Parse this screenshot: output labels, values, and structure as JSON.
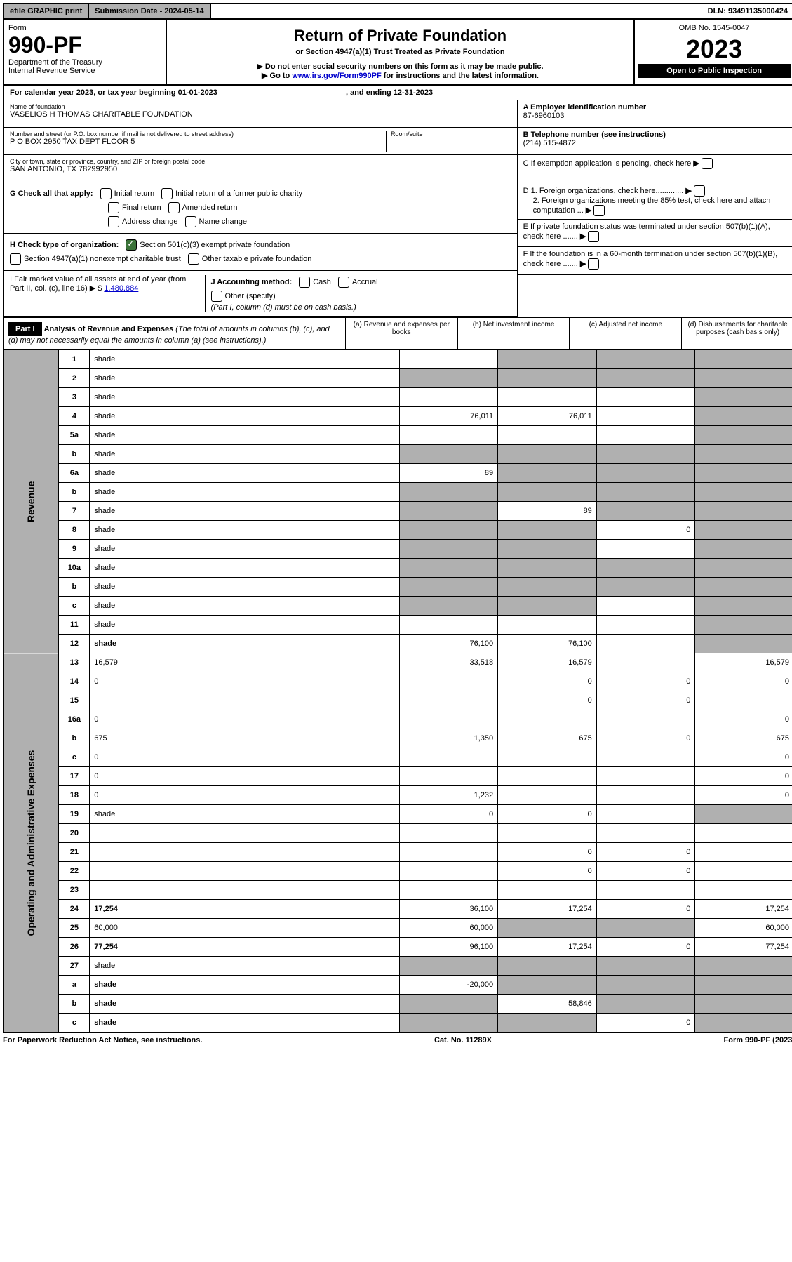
{
  "top": {
    "efile": "efile GRAPHIC print",
    "sub_date_label": "Submission Date - 2024-05-14",
    "dln": "DLN: 93491135000424"
  },
  "header": {
    "form_label": "Form",
    "form_num": "990-PF",
    "dept": "Department of the Treasury",
    "irs": "Internal Revenue Service",
    "title": "Return of Private Foundation",
    "subtitle": "or Section 4947(a)(1) Trust Treated as Private Foundation",
    "note1": "▶ Do not enter social security numbers on this form as it may be made public.",
    "note2_pre": "▶ Go to ",
    "note2_link": "www.irs.gov/Form990PF",
    "note2_post": " for instructions and the latest information.",
    "omb": "OMB No. 1545-0047",
    "year": "2023",
    "inspection": "Open to Public Inspection"
  },
  "cal": {
    "text_pre": "For calendar year 2023, or tax year beginning 01-01-2023",
    "text_mid": ", and ending 12-31-2023"
  },
  "info": {
    "name_label": "Name of foundation",
    "name": "VASELIOS H THOMAS CHARITABLE FOUNDATION",
    "addr_label": "Number and street (or P.O. box number if mail is not delivered to street address)",
    "addr": "P O BOX 2950 TAX DEPT FLOOR 5",
    "room_label": "Room/suite",
    "city_label": "City or town, state or province, country, and ZIP or foreign postal code",
    "city": "SAN ANTONIO, TX  782992950",
    "ein_label": "A Employer identification number",
    "ein": "87-6960103",
    "phone_label": "B Telephone number (see instructions)",
    "phone": "(214) 515-4872",
    "c_label": "C If exemption application is pending, check here",
    "d1": "D 1. Foreign organizations, check here.............",
    "d2": "2. Foreign organizations meeting the 85% test, check here and attach computation ...",
    "e_label": "E  If private foundation status was terminated under section 507(b)(1)(A), check here .......",
    "f_label": "F  If the foundation is in a 60-month termination under section 507(b)(1)(B), check here .......",
    "g_label": "G Check all that apply:",
    "g_opts": [
      "Initial return",
      "Initial return of a former public charity",
      "Final return",
      "Amended return",
      "Address change",
      "Name change"
    ],
    "h_label": "H Check type of organization:",
    "h_opt1": "Section 501(c)(3) exempt private foundation",
    "h_opt2": "Section 4947(a)(1) nonexempt charitable trust",
    "h_opt3": "Other taxable private foundation",
    "i_label": "I Fair market value of all assets at end of year (from Part II, col. (c), line 16) ▶ $",
    "i_val": "1,480,884",
    "j_label": "J Accounting method:",
    "j_opts": [
      "Cash",
      "Accrual"
    ],
    "j_other": "Other (specify)",
    "j_note": "(Part I, column (d) must be on cash basis.)"
  },
  "part1": {
    "label": "Part I",
    "title": "Analysis of Revenue and Expenses",
    "title_note": "(The total of amounts in columns (b), (c), and (d) may not necessarily equal the amounts in column (a) (see instructions).)",
    "col_a": "(a) Revenue and expenses per books",
    "col_b": "(b) Net investment income",
    "col_c": "(c) Adjusted net income",
    "col_d": "(d) Disbursements for charitable purposes (cash basis only)",
    "side_rev": "Revenue",
    "side_exp": "Operating and Administrative Expenses"
  },
  "rows": [
    {
      "n": "1",
      "d": "shade",
      "a": "",
      "b": "shade",
      "c": "shade"
    },
    {
      "n": "2",
      "d": "shade",
      "dots": true,
      "a": "shade",
      "b": "shade",
      "c": "shade"
    },
    {
      "n": "3",
      "d": "shade",
      "a": "",
      "b": "",
      "c": ""
    },
    {
      "n": "4",
      "d": "shade",
      "a": "76,011",
      "b": "76,011",
      "c": ""
    },
    {
      "n": "5a",
      "d": "shade",
      "a": "",
      "b": "",
      "c": ""
    },
    {
      "n": "b",
      "d": "shade",
      "a": "shade",
      "b": "shade",
      "c": "shade"
    },
    {
      "n": "6a",
      "d": "shade",
      "a": "89",
      "b": "shade",
      "c": "shade"
    },
    {
      "n": "b",
      "d": "shade",
      "a": "shade",
      "b": "shade",
      "c": "shade"
    },
    {
      "n": "7",
      "d": "shade",
      "a": "shade",
      "b": "89",
      "c": "shade"
    },
    {
      "n": "8",
      "d": "shade",
      "a": "shade",
      "b": "shade",
      "c": "0"
    },
    {
      "n": "9",
      "d": "shade",
      "a": "shade",
      "b": "shade",
      "c": ""
    },
    {
      "n": "10a",
      "d": "shade",
      "a": "shade",
      "b": "shade",
      "c": "shade"
    },
    {
      "n": "b",
      "d": "shade",
      "a": "shade",
      "b": "shade",
      "c": "shade"
    },
    {
      "n": "c",
      "d": "shade",
      "a": "shade",
      "b": "shade",
      "c": ""
    },
    {
      "n": "11",
      "d": "shade",
      "a": "",
      "b": "",
      "c": ""
    },
    {
      "n": "12",
      "d": "shade",
      "bold": true,
      "a": "76,100",
      "b": "76,100",
      "c": ""
    },
    {
      "n": "13",
      "d": "16,579",
      "a": "33,518",
      "b": "16,579",
      "c": ""
    },
    {
      "n": "14",
      "d": "0",
      "a": "",
      "b": "0",
      "c": "0"
    },
    {
      "n": "15",
      "d": "",
      "a": "",
      "b": "0",
      "c": "0"
    },
    {
      "n": "16a",
      "d": "0",
      "a": "",
      "b": "",
      "c": ""
    },
    {
      "n": "b",
      "d": "675",
      "a": "1,350",
      "b": "675",
      "c": "0"
    },
    {
      "n": "c",
      "d": "0",
      "a": "",
      "b": "",
      "c": ""
    },
    {
      "n": "17",
      "d": "0",
      "a": "",
      "b": "",
      "c": ""
    },
    {
      "n": "18",
      "d": "0",
      "a": "1,232",
      "b": "",
      "c": ""
    },
    {
      "n": "19",
      "d": "shade",
      "a": "0",
      "b": "0",
      "c": ""
    },
    {
      "n": "20",
      "d": "",
      "a": "",
      "b": "",
      "c": ""
    },
    {
      "n": "21",
      "d": "",
      "a": "",
      "b": "0",
      "c": "0"
    },
    {
      "n": "22",
      "d": "",
      "a": "",
      "b": "0",
      "c": "0"
    },
    {
      "n": "23",
      "d": "",
      "a": "",
      "b": "",
      "c": ""
    },
    {
      "n": "24",
      "d": "17,254",
      "bold": true,
      "a": "36,100",
      "b": "17,254",
      "c": "0"
    },
    {
      "n": "25",
      "d": "60,000",
      "a": "60,000",
      "b": "shade",
      "c": "shade"
    },
    {
      "n": "26",
      "d": "77,254",
      "bold": true,
      "a": "96,100",
      "b": "17,254",
      "c": "0"
    },
    {
      "n": "27",
      "d": "shade",
      "a": "shade",
      "b": "shade",
      "c": "shade"
    },
    {
      "n": "a",
      "d": "shade",
      "bold": true,
      "a": "-20,000",
      "b": "shade",
      "c": "shade"
    },
    {
      "n": "b",
      "d": "shade",
      "bold": true,
      "a": "shade",
      "b": "58,846",
      "c": "shade"
    },
    {
      "n": "c",
      "d": "shade",
      "bold": true,
      "a": "shade",
      "b": "shade",
      "c": "0"
    }
  ],
  "footer": {
    "left": "For Paperwork Reduction Act Notice, see instructions.",
    "mid": "Cat. No. 11289X",
    "right": "Form 990-PF (2023)"
  }
}
